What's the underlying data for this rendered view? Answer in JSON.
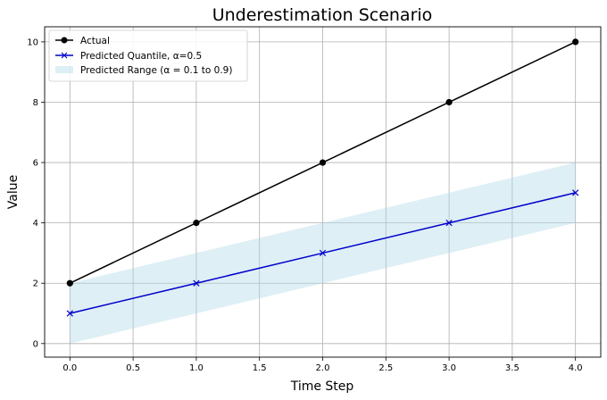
{
  "chart_data": {
    "type": "line",
    "title": "Underestimation Scenario",
    "xlabel": "Time Step",
    "ylabel": "Value",
    "xlim": [
      -0.2,
      4.2
    ],
    "ylim": [
      -0.45,
      10.5
    ],
    "xticks": [
      0.0,
      0.5,
      1.0,
      1.5,
      2.0,
      2.5,
      3.0,
      3.5,
      4.0
    ],
    "xtick_labels": [
      "0.0",
      "0.5",
      "1.0",
      "1.5",
      "2.0",
      "2.5",
      "3.0",
      "3.5",
      "4.0"
    ],
    "yticks": [
      0,
      2,
      4,
      6,
      8,
      10
    ],
    "ytick_labels": [
      "0",
      "2",
      "4",
      "6",
      "8",
      "10"
    ],
    "grid": true,
    "legend_position": "top-left",
    "x": [
      0,
      1,
      2,
      3,
      4
    ],
    "series": [
      {
        "name": "Actual",
        "values": [
          2,
          4,
          6,
          8,
          10
        ],
        "color": "#000000",
        "marker": "circle"
      },
      {
        "name": "Predicted Quantile, α=0.5",
        "values": [
          1,
          2,
          3,
          4,
          5
        ],
        "color": "#0000cc",
        "marker": "x"
      }
    ],
    "band": {
      "name": "Predicted Range (α = 0.1 to 0.9)",
      "lower": [
        0,
        1,
        2,
        3,
        4
      ],
      "upper": [
        2,
        3,
        4,
        5,
        6
      ],
      "color": "#add8e6"
    }
  }
}
